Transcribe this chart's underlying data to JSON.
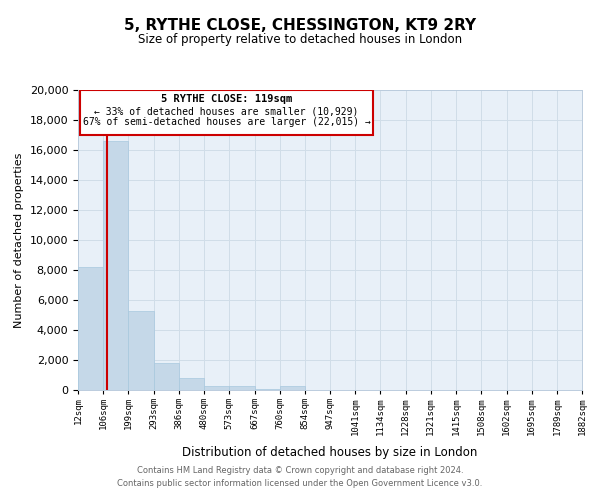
{
  "title": "5, RYTHE CLOSE, CHESSINGTON, KT9 2RY",
  "subtitle": "Size of property relative to detached houses in London",
  "xlabel": "Distribution of detached houses by size in London",
  "ylabel": "Number of detached properties",
  "bar_edges": [
    12,
    106,
    199,
    293,
    386,
    480,
    573,
    667,
    760,
    854,
    947,
    1041,
    1134,
    1228,
    1321,
    1415,
    1508,
    1602,
    1695,
    1789,
    1882
  ],
  "bar_heights": [
    8200,
    16600,
    5300,
    1800,
    800,
    300,
    300,
    50,
    300,
    0,
    0,
    0,
    0,
    0,
    0,
    0,
    0,
    0,
    0,
    0
  ],
  "bar_color": "#c5d8e8",
  "bar_edgecolor": "#a8c8de",
  "ylim": [
    0,
    20000
  ],
  "yticks": [
    0,
    2000,
    4000,
    6000,
    8000,
    10000,
    12000,
    14000,
    16000,
    18000,
    20000
  ],
  "property_size": 119,
  "red_line_color": "#cc0000",
  "annotation_title": "5 RYTHE CLOSE: 119sqm",
  "annotation_line1": "← 33% of detached houses are smaller (10,929)",
  "annotation_line2": "67% of semi-detached houses are larger (22,015) →",
  "annotation_box_edgecolor": "#cc0000",
  "grid_color": "#d0dde8",
  "background_color": "#e8f0f8",
  "footer_line1": "Contains HM Land Registry data © Crown copyright and database right 2024.",
  "footer_line2": "Contains public sector information licensed under the Open Government Licence v3.0.",
  "tick_labels": [
    "12sqm",
    "106sqm",
    "199sqm",
    "293sqm",
    "386sqm",
    "480sqm",
    "573sqm",
    "667sqm",
    "760sqm",
    "854sqm",
    "947sqm",
    "1041sqm",
    "1134sqm",
    "1228sqm",
    "1321sqm",
    "1415sqm",
    "1508sqm",
    "1602sqm",
    "1695sqm",
    "1789sqm",
    "1882sqm"
  ]
}
